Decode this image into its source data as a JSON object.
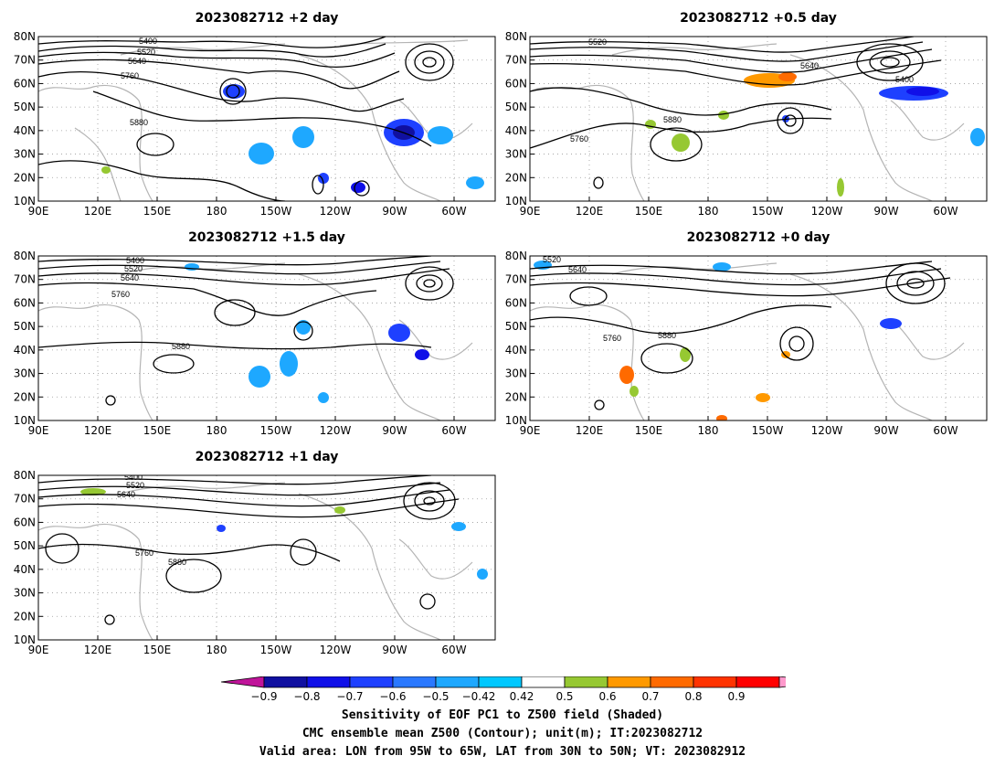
{
  "panels": [
    {
      "title": "2023082712 +2 day",
      "contour_labels": [
        "5400",
        "5520",
        "5640",
        "5760",
        "5880"
      ]
    },
    {
      "title": "2023082712 +0.5 day",
      "contour_labels": [
        "5400",
        "5520",
        "5640",
        "5760",
        "5880"
      ]
    },
    {
      "title": "2023082712 +1.5 day",
      "contour_labels": [
        "5400",
        "5520",
        "5640",
        "5760",
        "5880"
      ]
    },
    {
      "title": "2023082712 +0 day",
      "contour_labels": [
        "5520",
        "5640",
        "5760",
        "5880"
      ]
    },
    {
      "title": "2023082712 +1 day",
      "contour_labels": [
        "5400",
        "5520",
        "5640",
        "5760",
        "5880"
      ]
    }
  ],
  "axes": {
    "lat_labels": [
      "80N",
      "70N",
      "60N",
      "50N",
      "40N",
      "30N",
      "20N",
      "10N"
    ],
    "lon_labels": [
      "90E",
      "120E",
      "150E",
      "180",
      "150W",
      "120W",
      "90W",
      "60W"
    ]
  },
  "colorbar": {
    "tick_labels": [
      "−0.9",
      "−0.8",
      "−0.7",
      "−0.6",
      "−0.5",
      "−0.42",
      "0.42",
      "0.5",
      "0.6",
      "0.7",
      "0.8",
      "0.9"
    ],
    "colors": [
      "#c0149a",
      "#1010a0",
      "#1010e8",
      "#1e40ff",
      "#2a78ff",
      "#1ea8ff",
      "#00c8ff",
      "#ffffff",
      "#96c832",
      "#ff9900",
      "#ff6a00",
      "#ff3300",
      "#ff0000",
      "#ff99cc"
    ]
  },
  "captions": [
    "Sensitivity of EOF PC1 to Z500 field (Shaded)",
    "CMC ensemble mean Z500 (Contour); unit(m); IT:2023082712",
    "Valid area: LON from 95W to 65W, LAT from 30N to 50N; VT: 2023082912"
  ]
}
